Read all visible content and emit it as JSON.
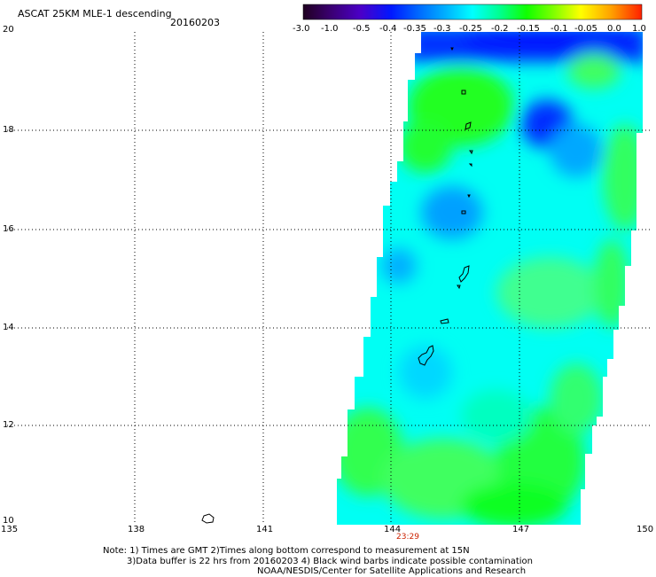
{
  "header": {
    "title": "ASCAT 25KM MLE-1 descending",
    "date": "20160203"
  },
  "colorbar": {
    "labels": [
      "-3.0",
      "-1.0",
      "-0.5",
      "-0.4",
      "-0.35",
      "-0.3",
      "-0.25",
      "-0.2",
      "-0.15",
      "-0.1",
      "-0.05",
      "0.0",
      "1.0"
    ],
    "colors": [
      "#200020",
      "#3a0070",
      "#4b00c8",
      "#0018ff",
      "#0068ff",
      "#00b0ff",
      "#00ffff",
      "#00ff90",
      "#10ff00",
      "#80ff00",
      "#ffff00",
      "#ffa000",
      "#ff2000"
    ]
  },
  "axes": {
    "lat_labels": [
      "20",
      "18",
      "16",
      "14",
      "12",
      "10"
    ],
    "lon_labels": [
      "135",
      "138",
      "141",
      "144",
      "147",
      "150"
    ]
  },
  "time_label": "23:29",
  "notes": {
    "line1": "Note: 1) Times are GMT 2)Times along bottom correspond to measurement at 15N",
    "line2": "3)Data buffer is 22 hrs from 20160203 4) Black wind barbs indicate possible contamination",
    "line3": "NOAA/NESDIS/Center for Satellite Applications and Research"
  }
}
